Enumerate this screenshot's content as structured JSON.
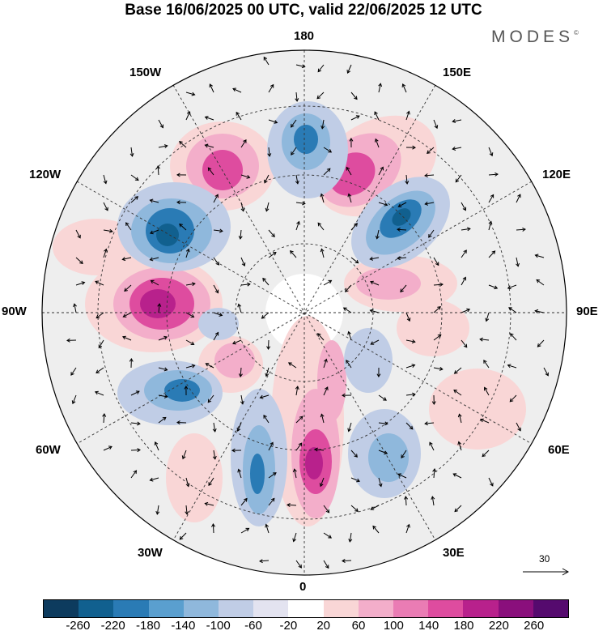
{
  "title": "Base 16/06/2025 00 UTC, valid 22/06/2025 12 UTC",
  "brand": "MODES",
  "brand_mark": "©",
  "longitude_labels": {
    "top": "180",
    "bottom": "0",
    "left": "90W",
    "right": "90E",
    "upper_left_outer": "150W",
    "upper_right_outer": "150E",
    "mid_left_upper": "120W",
    "mid_right_upper": "120E",
    "mid_left_lower": "60W",
    "mid_right_lower": "60E",
    "lower_left": "30W",
    "lower_right": "30E"
  },
  "reference_vector": {
    "label": "30"
  },
  "colorbar": {
    "colors": [
      "#0d3b5e",
      "#11608f",
      "#2a7bb5",
      "#5a9fcf",
      "#8fb8dc",
      "#c0cde6",
      "#e3e3f0",
      "#ffffff",
      "#f9d6d6",
      "#f3aeca",
      "#ea7cb4",
      "#de4c9f",
      "#b8218c",
      "#8a0f7c",
      "#550a6e"
    ],
    "tick_labels": [
      "-260",
      "-220",
      "-180",
      "-140",
      "-100",
      "-60",
      "-20",
      "20",
      "60",
      "100",
      "140",
      "180",
      "220",
      "260"
    ]
  },
  "map_features": {
    "projection": "north-polar-stereographic",
    "field": "geopotential height anomaly with wind vectors",
    "graticule": "dashed"
  }
}
